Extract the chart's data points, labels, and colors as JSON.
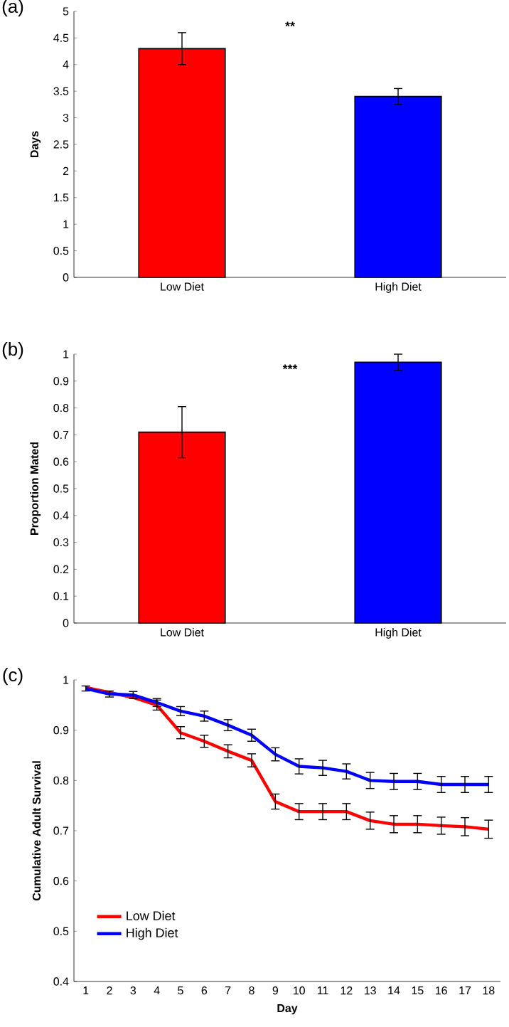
{
  "chart_data": [
    {
      "type": "bar",
      "title": "(a)",
      "ylabel": "Days",
      "categories": [
        "Low Diet",
        "High Diet"
      ],
      "values": [
        4.3,
        3.4
      ],
      "colors": [
        "#ff0000",
        "#0000ff"
      ],
      "errors": [
        0.3,
        0.15
      ],
      "ylim": [
        0,
        5
      ],
      "yticks": [
        0,
        0.5,
        1,
        1.5,
        2,
        2.5,
        3,
        3.5,
        4,
        4.5,
        5
      ],
      "annotations": [
        "**"
      ]
    },
    {
      "type": "bar",
      "title": "(b)",
      "ylabel": "Proportion Mated",
      "categories": [
        "Low Diet",
        "High Diet"
      ],
      "values": [
        0.71,
        0.97
      ],
      "colors": [
        "#ff0000",
        "#0000ff"
      ],
      "errors": [
        0.095,
        0.03
      ],
      "ylim": [
        0,
        1
      ],
      "yticks": [
        0,
        0.1,
        0.2,
        0.3,
        0.4,
        0.5,
        0.6,
        0.7,
        0.8,
        0.9,
        1
      ],
      "annotations": [
        "***"
      ]
    },
    {
      "type": "line",
      "title": "(c)",
      "xlabel": "Day",
      "ylabel": "Cumulative Adult Survival",
      "categories": [
        "1",
        "2",
        "3",
        "4",
        "5",
        "6",
        "7",
        "8",
        "9",
        "10",
        "11",
        "12",
        "13",
        "14",
        "15",
        "16",
        "17",
        "18"
      ],
      "legend": "bottom left",
      "ylim": [
        0.4,
        1
      ],
      "yticks": [
        0.4,
        0.5,
        0.6,
        0.7,
        0.8,
        0.9,
        1
      ],
      "series": [
        {
          "name": "Low Diet",
          "color": "#ff0000",
          "values": [
            0.985,
            0.975,
            0.965,
            0.95,
            0.895,
            0.878,
            0.858,
            0.84,
            0.758,
            0.738,
            0.738,
            0.738,
            0.72,
            0.713,
            0.713,
            0.71,
            0.708,
            0.703
          ],
          "errors": [
            null,
            null,
            null,
            0.01,
            0.012,
            0.012,
            0.013,
            0.013,
            0.015,
            0.016,
            0.016,
            0.016,
            0.017,
            0.017,
            0.017,
            0.017,
            0.018,
            0.018
          ]
        },
        {
          "name": "High Diet",
          "color": "#0000ff",
          "values": [
            0.983,
            0.972,
            0.97,
            0.955,
            0.938,
            0.928,
            0.91,
            0.89,
            0.852,
            0.828,
            0.825,
            0.818,
            0.8,
            0.798,
            0.798,
            0.792,
            0.792,
            0.792
          ],
          "errors": [
            0.005,
            0.006,
            0.007,
            0.008,
            0.009,
            0.01,
            0.011,
            0.012,
            0.013,
            0.015,
            0.015,
            0.015,
            0.016,
            0.016,
            0.016,
            0.016,
            0.016,
            0.016
          ]
        }
      ]
    }
  ]
}
